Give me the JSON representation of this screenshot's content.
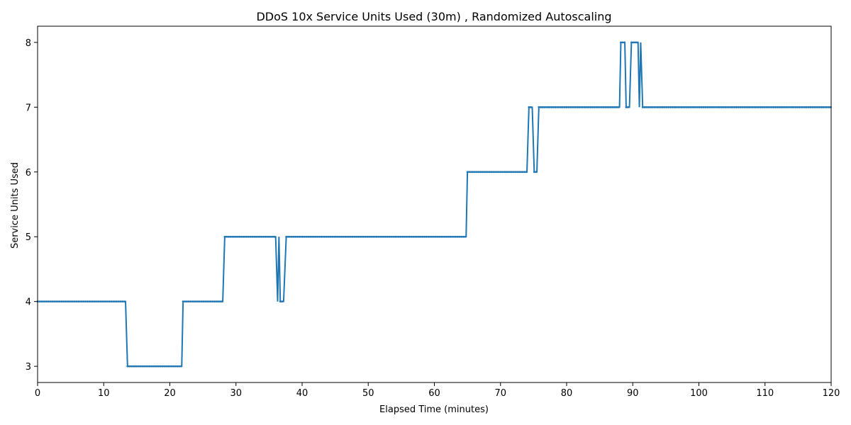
{
  "chart_data": {
    "type": "line",
    "title": "DDoS 10x Service Units Used (30m) , Randomized Autoscaling",
    "xlabel": "Elapsed Time (minutes)",
    "ylabel": "Service Units Used",
    "xlim": [
      0,
      120
    ],
    "ylim": [
      2.75,
      8.25
    ],
    "xticks": [
      0,
      10,
      20,
      30,
      40,
      50,
      60,
      70,
      80,
      90,
      100,
      110,
      120
    ],
    "yticks": [
      3,
      4,
      5,
      6,
      7,
      8
    ],
    "grid": false,
    "legend": "none",
    "series": [
      {
        "color": "#1f77b4",
        "marker": "dot",
        "points": [
          [
            0,
            4
          ],
          [
            13.3,
            4
          ],
          [
            13.6,
            3
          ],
          [
            21.8,
            3
          ],
          [
            22.0,
            4
          ],
          [
            28.0,
            4
          ],
          [
            28.3,
            5
          ],
          [
            36.0,
            5
          ],
          [
            36.3,
            4
          ],
          [
            36.5,
            5
          ],
          [
            36.7,
            4
          ],
          [
            37.2,
            4
          ],
          [
            37.6,
            5
          ],
          [
            64.8,
            5
          ],
          [
            65.0,
            6
          ],
          [
            74.0,
            6
          ],
          [
            74.3,
            7
          ],
          [
            74.8,
            7
          ],
          [
            75.1,
            6
          ],
          [
            75.5,
            6
          ],
          [
            75.8,
            7
          ],
          [
            88.0,
            7
          ],
          [
            88.2,
            8
          ],
          [
            88.8,
            8
          ],
          [
            89.0,
            7
          ],
          [
            89.5,
            7
          ],
          [
            89.8,
            8
          ],
          [
            90.8,
            8
          ],
          [
            91.0,
            7
          ],
          [
            91.2,
            8
          ],
          [
            91.5,
            7
          ],
          [
            120,
            7
          ]
        ]
      }
    ]
  }
}
